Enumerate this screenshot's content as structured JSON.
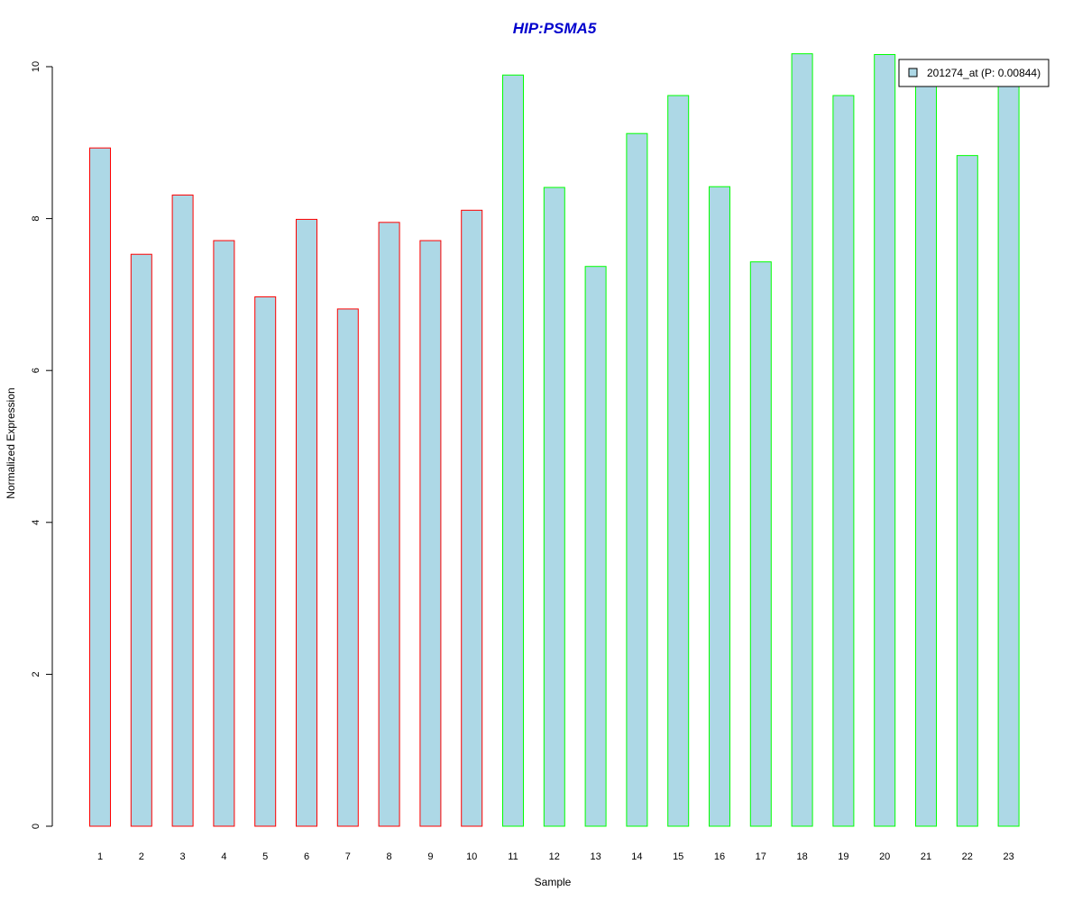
{
  "chart_data": {
    "type": "bar",
    "title": "HIP:PSMA5",
    "xlabel": "Sample",
    "ylabel": "Normalized Expression",
    "categories": [
      "1",
      "2",
      "3",
      "4",
      "5",
      "6",
      "7",
      "8",
      "9",
      "10",
      "11",
      "12",
      "13",
      "14",
      "15",
      "16",
      "17",
      "18",
      "19",
      "20",
      "21",
      "22",
      "23"
    ],
    "series": [
      {
        "name": "201274_at (P: 0.00844)",
        "values": [
          8.93,
          7.53,
          8.31,
          7.71,
          6.97,
          7.99,
          6.81,
          7.95,
          7.71,
          8.11,
          9.89,
          8.41,
          7.37,
          9.12,
          9.62,
          8.42,
          7.43,
          10.17,
          9.62,
          10.16,
          9.79,
          8.83,
          9.77
        ],
        "fill": "#add8e6",
        "border_colors": [
          "#ff0000",
          "#ff0000",
          "#ff0000",
          "#ff0000",
          "#ff0000",
          "#ff0000",
          "#ff0000",
          "#ff0000",
          "#ff0000",
          "#ff0000",
          "#00ff00",
          "#00ff00",
          "#00ff00",
          "#00ff00",
          "#00ff00",
          "#00ff00",
          "#00ff00",
          "#00ff00",
          "#00ff00",
          "#00ff00",
          "#00ff00",
          "#00ff00",
          "#00ff00"
        ]
      }
    ],
    "yticks": [
      "0",
      "2",
      "4",
      "6",
      "8",
      "10"
    ],
    "ylim": [
      0,
      10.3
    ],
    "grid": false,
    "legend_placement": "top-right",
    "title_color": "#0000cd"
  }
}
